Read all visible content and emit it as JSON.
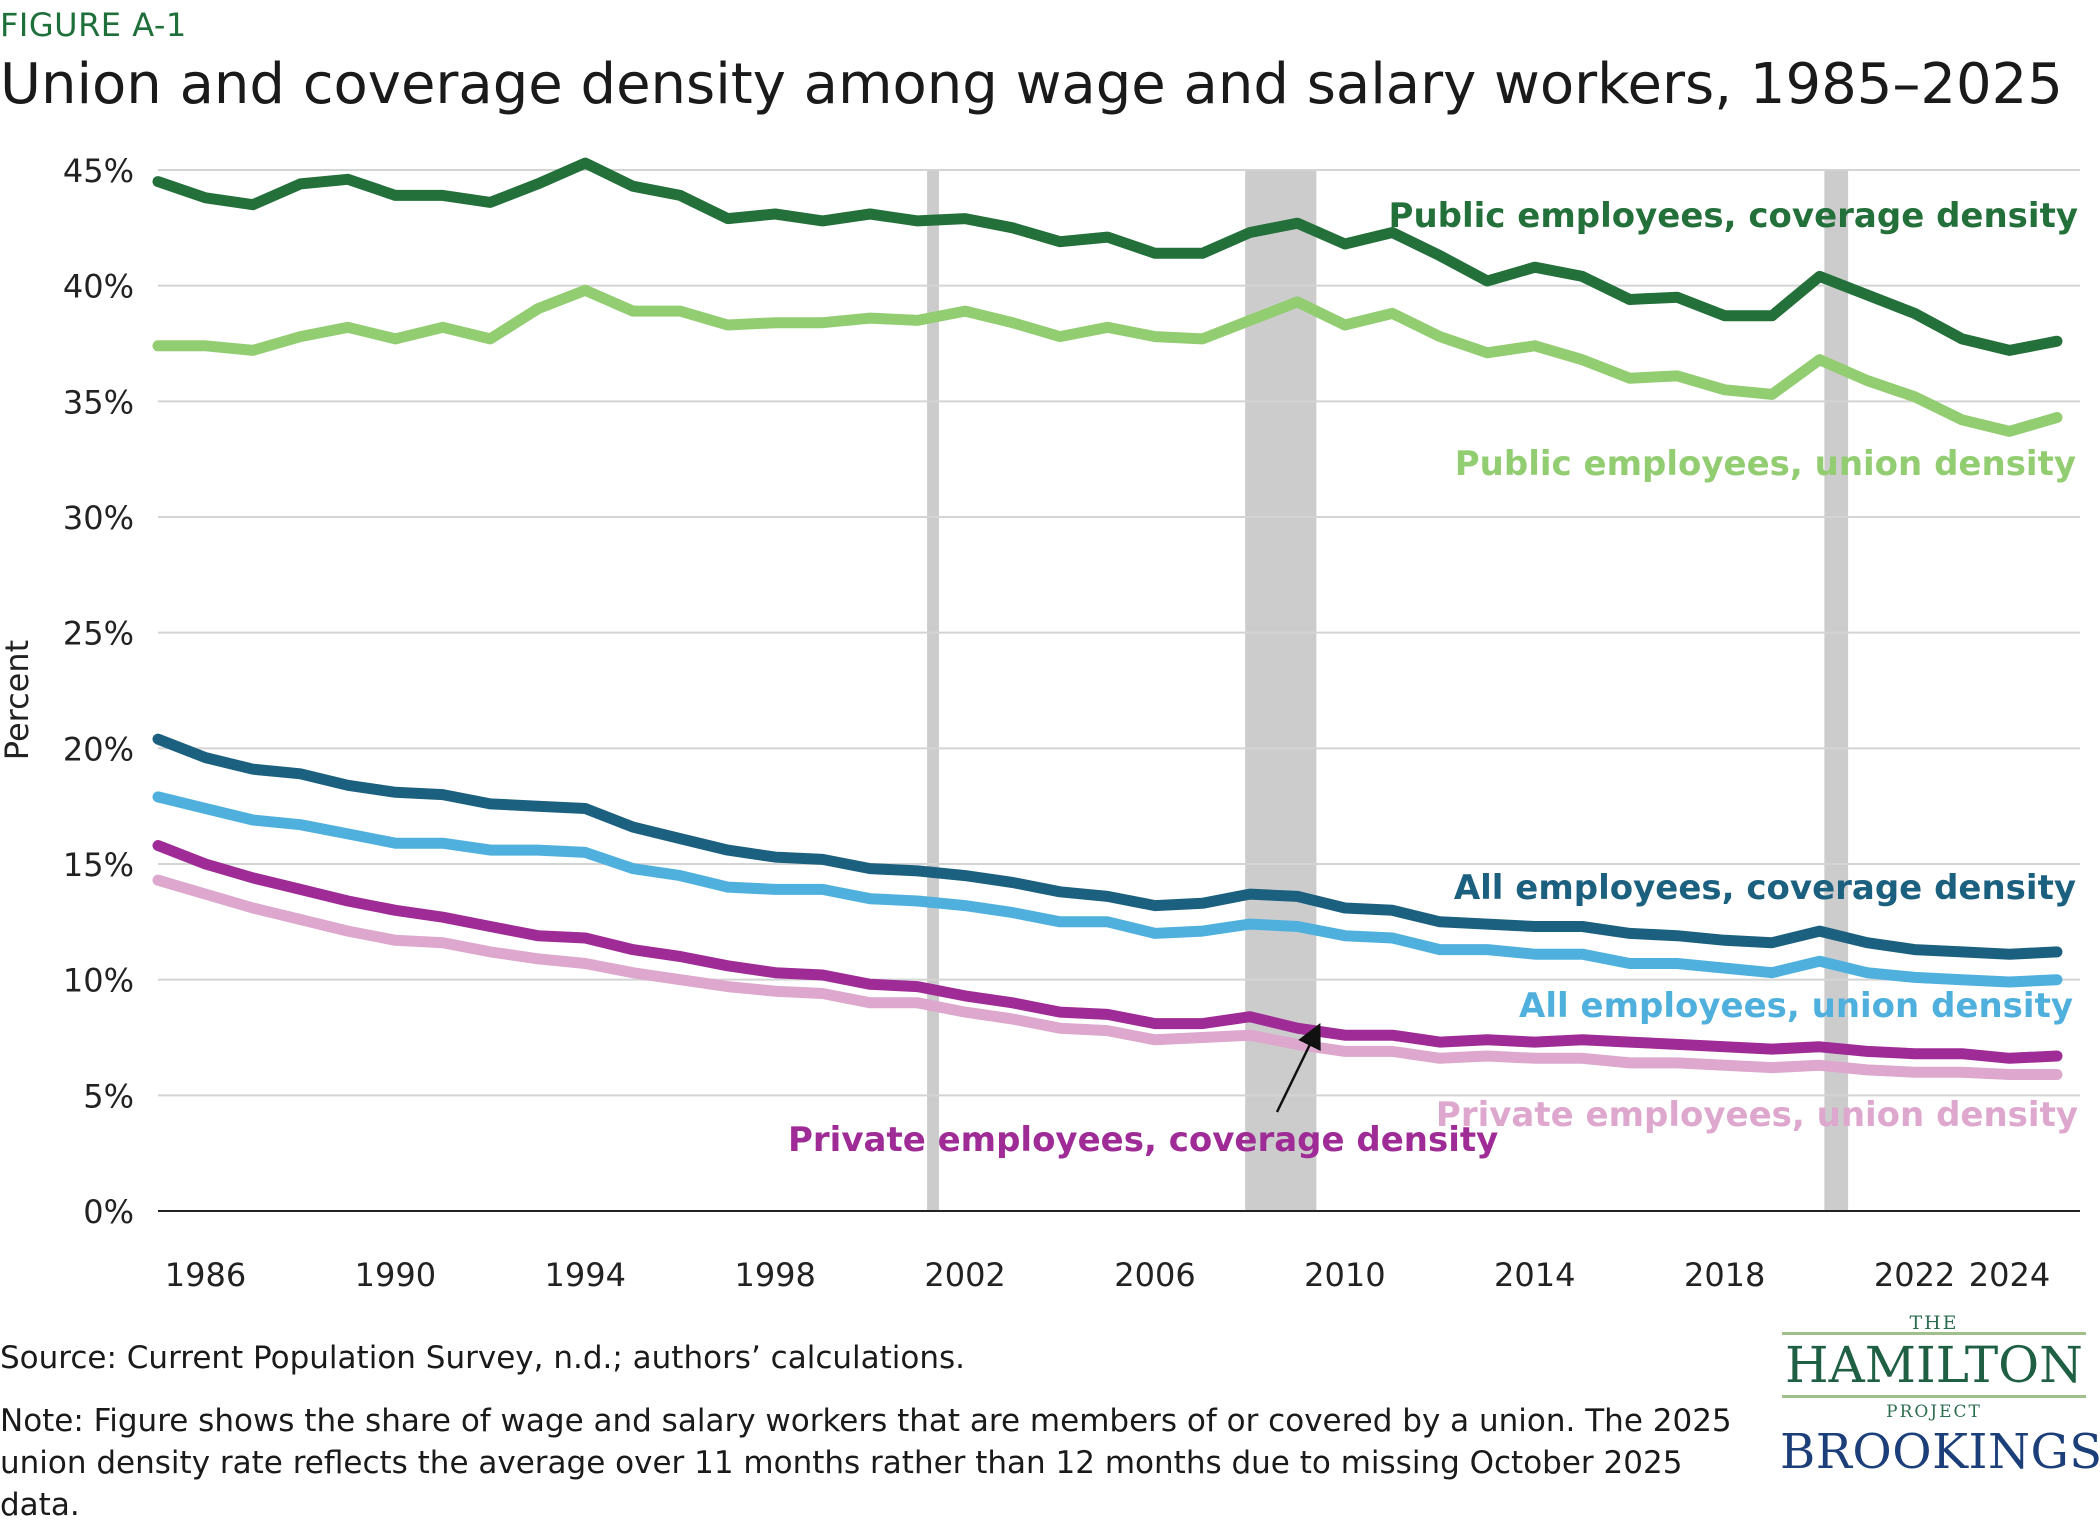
{
  "figure_label": "FIGURE A-1",
  "source": "Source: Current Population Survey, n.d.; authors’ calculations.",
  "note": "Note: Figure shows the share of wage and salary workers that are members of or covered by a union. The 2025 union density rate reflects the average over 11 months rather than 12 months due to missing October 2025 data.",
  "logos": {
    "hamilton_the": "THE",
    "hamilton_name": "HAMILTON",
    "hamilton_project": "PROJECT",
    "brookings": "BROOKINGS"
  },
  "colors": {
    "public_coverage": "#23703a",
    "public_union": "#93cd72",
    "all_coverage": "#1c607f",
    "all_union": "#4fb0de",
    "private_coverage": "#9e2b96",
    "private_union": "#dda7ce",
    "recession": "#cccccc",
    "grid": "#d4d4d4"
  },
  "chart_data": {
    "type": "line",
    "title": "Union and coverage density among wage and salary workers, 1985–2025",
    "ylabel": "Percent",
    "xlabel": "",
    "ylim": [
      0,
      45
    ],
    "xlim": [
      1985,
      2025
    ],
    "yticks": [
      0,
      5,
      10,
      15,
      20,
      25,
      30,
      35,
      40,
      45
    ],
    "ytick_labels": [
      "0%",
      "5%",
      "10%",
      "15%",
      "20%",
      "25%",
      "30%",
      "35%",
      "40%",
      "45%"
    ],
    "xticks": [
      1986,
      1990,
      1994,
      1998,
      2002,
      2006,
      2010,
      2014,
      2018,
      2022,
      2024
    ],
    "xtick_labels": [
      "1986",
      "1990",
      "1994",
      "1998",
      "2002",
      "2006",
      "2010",
      "2014",
      "2018",
      "2022",
      "2024"
    ],
    "grid": "horizontal",
    "recessions": [
      [
        2001.2,
        2001.45
      ],
      [
        2007.9,
        2009.4
      ],
      [
        2020.1,
        2020.6
      ]
    ],
    "x": [
      1985,
      1986,
      1987,
      1988,
      1989,
      1990,
      1991,
      1992,
      1993,
      1994,
      1995,
      1996,
      1997,
      1998,
      1999,
      2000,
      2001,
      2002,
      2003,
      2004,
      2005,
      2006,
      2007,
      2008,
      2009,
      2010,
      2011,
      2012,
      2013,
      2014,
      2015,
      2016,
      2017,
      2018,
      2019,
      2020,
      2021,
      2022,
      2023,
      2024,
      2025
    ],
    "series": [
      {
        "name": "Public employees, coverage density",
        "key": "public_coverage",
        "values": [
          44.5,
          43.8,
          43.5,
          44.4,
          44.6,
          43.9,
          43.9,
          43.6,
          44.4,
          45.3,
          44.3,
          43.9,
          42.9,
          43.1,
          42.8,
          43.1,
          42.8,
          42.9,
          42.5,
          41.9,
          42.1,
          41.4,
          41.4,
          42.3,
          42.7,
          41.8,
          42.3,
          41.3,
          40.2,
          40.8,
          40.4,
          39.4,
          39.5,
          38.7,
          38.7,
          40.4,
          39.6,
          38.8,
          37.7,
          37.2,
          37.6
        ]
      },
      {
        "name": "Public employees, union density",
        "key": "public_union",
        "values": [
          37.4,
          37.4,
          37.2,
          37.8,
          38.2,
          37.7,
          38.2,
          37.7,
          39.0,
          39.8,
          38.9,
          38.9,
          38.3,
          38.4,
          38.4,
          38.6,
          38.5,
          38.9,
          38.4,
          37.8,
          38.2,
          37.8,
          37.7,
          38.5,
          39.3,
          38.3,
          38.8,
          37.8,
          37.1,
          37.4,
          36.8,
          36.0,
          36.1,
          35.5,
          35.3,
          36.8,
          35.9,
          35.2,
          34.2,
          33.7,
          34.3
        ]
      },
      {
        "name": "All employees, coverage density",
        "key": "all_coverage",
        "values": [
          20.4,
          19.6,
          19.1,
          18.9,
          18.4,
          18.1,
          18.0,
          17.6,
          17.5,
          17.4,
          16.6,
          16.1,
          15.6,
          15.3,
          15.2,
          14.8,
          14.7,
          14.5,
          14.2,
          13.8,
          13.6,
          13.2,
          13.3,
          13.7,
          13.6,
          13.1,
          13.0,
          12.5,
          12.4,
          12.3,
          12.3,
          12.0,
          11.9,
          11.7,
          11.6,
          12.1,
          11.6,
          11.3,
          11.2,
          11.1,
          11.2
        ]
      },
      {
        "name": "All employees, union density",
        "key": "all_union",
        "values": [
          17.9,
          17.4,
          16.9,
          16.7,
          16.3,
          15.9,
          15.9,
          15.6,
          15.6,
          15.5,
          14.8,
          14.5,
          14.0,
          13.9,
          13.9,
          13.5,
          13.4,
          13.2,
          12.9,
          12.5,
          12.5,
          12.0,
          12.1,
          12.4,
          12.3,
          11.9,
          11.8,
          11.3,
          11.3,
          11.1,
          11.1,
          10.7,
          10.7,
          10.5,
          10.3,
          10.8,
          10.3,
          10.1,
          10.0,
          9.9,
          10.0
        ]
      },
      {
        "name": "Private employees, coverage density",
        "key": "private_coverage",
        "values": [
          15.8,
          15.0,
          14.4,
          13.9,
          13.4,
          13.0,
          12.7,
          12.3,
          11.9,
          11.8,
          11.3,
          11.0,
          10.6,
          10.3,
          10.2,
          9.8,
          9.7,
          9.3,
          9.0,
          8.6,
          8.5,
          8.1,
          8.1,
          8.4,
          7.9,
          7.6,
          7.6,
          7.3,
          7.4,
          7.3,
          7.4,
          7.3,
          7.2,
          7.1,
          7.0,
          7.1,
          6.9,
          6.8,
          6.8,
          6.6,
          6.7
        ]
      },
      {
        "name": "Private employees, union density",
        "key": "private_union",
        "values": [
          14.3,
          13.7,
          13.1,
          12.6,
          12.1,
          11.7,
          11.6,
          11.2,
          10.9,
          10.7,
          10.3,
          10.0,
          9.7,
          9.5,
          9.4,
          9.0,
          9.0,
          8.6,
          8.3,
          7.9,
          7.8,
          7.4,
          7.5,
          7.6,
          7.2,
          6.9,
          6.9,
          6.6,
          6.7,
          6.6,
          6.6,
          6.4,
          6.4,
          6.3,
          6.2,
          6.3,
          6.1,
          6.0,
          6.0,
          5.9,
          5.9
        ]
      }
    ],
    "annotations": [
      {
        "key": "public_coverage",
        "text": "Public employees, coverage density"
      },
      {
        "key": "public_union",
        "text": "Public employees, union density"
      },
      {
        "key": "all_coverage",
        "text": "All employees, coverage density"
      },
      {
        "key": "all_union",
        "text": "All employees, union density"
      },
      {
        "key": "private_coverage",
        "text": "Private employees, coverage density"
      },
      {
        "key": "private_union",
        "text": "Private employees, union density"
      }
    ]
  }
}
